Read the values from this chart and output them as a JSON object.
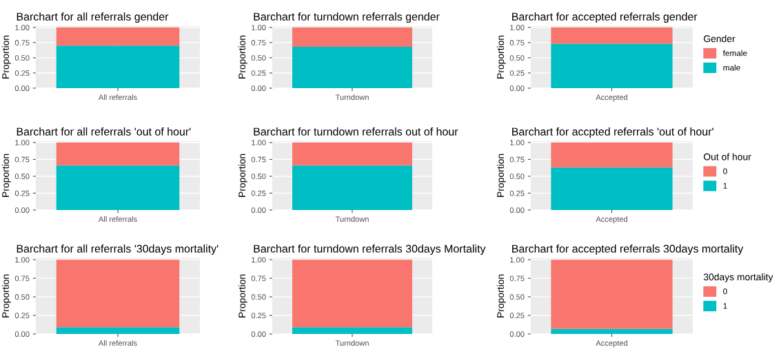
{
  "chart_data": [
    {
      "type": "bar",
      "stacked": true,
      "title": "Barchart for all referrals gender",
      "ylabel": "Proportion",
      "categories": [
        "All referrals"
      ],
      "ylim": [
        0,
        1.02
      ],
      "yticks": [
        {
          "value": 0,
          "label": "0.00"
        },
        {
          "value": 0.25,
          "label": "0.25"
        },
        {
          "value": 0.5,
          "label": "0.50"
        },
        {
          "value": 0.75,
          "label": "0.75"
        },
        {
          "value": 1,
          "label": "1.00"
        }
      ],
      "grid": true,
      "series": [
        {
          "color": "#00bfc4",
          "values": [
            0.7
          ]
        },
        {
          "color": "#f8766d",
          "values": [
            0.3
          ]
        }
      ]
    },
    {
      "type": "bar",
      "stacked": true,
      "title": "Barchart for turndown referrals gender",
      "ylabel": "Proportion",
      "categories": [
        "Turndown"
      ],
      "ylim": [
        0,
        1.02
      ],
      "yticks": [
        {
          "value": 0,
          "label": "0.00"
        },
        {
          "value": 0.25,
          "label": "0.25"
        },
        {
          "value": 0.5,
          "label": "0.50"
        },
        {
          "value": 0.75,
          "label": "0.75"
        },
        {
          "value": 1,
          "label": "1.00"
        }
      ],
      "grid": true,
      "series": [
        {
          "color": "#00bfc4",
          "values": [
            0.68
          ]
        },
        {
          "color": "#f8766d",
          "values": [
            0.32
          ]
        }
      ]
    },
    {
      "type": "bar",
      "stacked": true,
      "title": "Barchart for accepted referrals gender",
      "ylabel": "Proportion",
      "categories": [
        "Accepted"
      ],
      "ylim": [
        0,
        1.02
      ],
      "yticks": [
        {
          "value": 0,
          "label": "0.00"
        },
        {
          "value": 0.25,
          "label": "0.25"
        },
        {
          "value": 0.5,
          "label": "0.50"
        },
        {
          "value": 0.75,
          "label": "0.75"
        },
        {
          "value": 1,
          "label": "1.00"
        }
      ],
      "grid": true,
      "legend": "right",
      "legend_title": "Gender",
      "series": [
        {
          "name": "male",
          "color": "#00bfc4",
          "values": [
            0.73
          ]
        },
        {
          "name": "female",
          "color": "#f8766d",
          "values": [
            0.27
          ]
        }
      ]
    },
    {
      "type": "bar",
      "stacked": true,
      "title": "Barchart for all referrals 'out of hour'",
      "ylabel": "Proportion",
      "categories": [
        "All referrals"
      ],
      "ylim": [
        0,
        1.02
      ],
      "yticks": [
        {
          "value": 0,
          "label": "0.00"
        },
        {
          "value": 0.25,
          "label": "0.25"
        },
        {
          "value": 0.5,
          "label": "0.50"
        },
        {
          "value": 0.75,
          "label": "0.75"
        },
        {
          "value": 1,
          "label": "1.00"
        }
      ],
      "grid": true,
      "series": [
        {
          "color": "#00bfc4",
          "values": [
            0.66
          ]
        },
        {
          "color": "#f8766d",
          "values": [
            0.34
          ]
        }
      ]
    },
    {
      "type": "bar",
      "stacked": true,
      "title": "Barchart for turndown referrals out of hour",
      "ylabel": "Proportion",
      "categories": [
        "Turndown"
      ],
      "ylim": [
        0,
        1.02
      ],
      "yticks": [
        {
          "value": 0,
          "label": "0.00"
        },
        {
          "value": 0.25,
          "label": "0.25"
        },
        {
          "value": 0.5,
          "label": "0.50"
        },
        {
          "value": 0.75,
          "label": "0.75"
        },
        {
          "value": 1,
          "label": "1.00"
        }
      ],
      "grid": true,
      "series": [
        {
          "color": "#00bfc4",
          "values": [
            0.66
          ]
        },
        {
          "color": "#f8766d",
          "values": [
            0.34
          ]
        }
      ]
    },
    {
      "type": "bar",
      "stacked": true,
      "title": "Barchart for accpted referrals 'out of hour'",
      "ylabel": "Proportion",
      "categories": [
        "Accepted"
      ],
      "ylim": [
        0,
        1.02
      ],
      "yticks": [
        {
          "value": 0,
          "label": "0.00"
        },
        {
          "value": 0.25,
          "label": "0.25"
        },
        {
          "value": 0.5,
          "label": "0.50"
        },
        {
          "value": 0.75,
          "label": "0.75"
        },
        {
          "value": 1,
          "label": "1.00"
        }
      ],
      "grid": true,
      "legend": "right",
      "legend_title": "Out of hour",
      "series": [
        {
          "name": "1",
          "color": "#00bfc4",
          "values": [
            0.63
          ]
        },
        {
          "name": "0",
          "color": "#f8766d",
          "values": [
            0.37
          ]
        }
      ]
    },
    {
      "type": "bar",
      "stacked": true,
      "title": "Barchart for all referrals '30days mortality'",
      "ylabel": "Proportion",
      "categories": [
        "All referrals"
      ],
      "ylim": [
        0,
        1.02
      ],
      "yticks": [
        {
          "value": 0,
          "label": "0.00"
        },
        {
          "value": 0.25,
          "label": "0.25"
        },
        {
          "value": 0.5,
          "label": "0.50"
        },
        {
          "value": 0.75,
          "label": "0.75"
        },
        {
          "value": 1,
          "label": "1.00"
        }
      ],
      "grid": true,
      "series": [
        {
          "color": "#00bfc4",
          "values": [
            0.09
          ]
        },
        {
          "color": "#f8766d",
          "values": [
            0.91
          ]
        }
      ]
    },
    {
      "type": "bar",
      "stacked": true,
      "title": "Barchart for turndown referrals 30days Mortality",
      "ylabel": "Proportion",
      "categories": [
        "Turndown"
      ],
      "ylim": [
        0,
        1.02
      ],
      "yticks": [
        {
          "value": 0,
          "label": "0.00"
        },
        {
          "value": 0.25,
          "label": "0.25"
        },
        {
          "value": 0.5,
          "label": "0.50"
        },
        {
          "value": 0.75,
          "label": "0.75"
        },
        {
          "value": 1,
          "label": "1.00"
        }
      ],
      "grid": true,
      "series": [
        {
          "color": "#00bfc4",
          "values": [
            0.09
          ]
        },
        {
          "color": "#f8766d",
          "values": [
            0.91
          ]
        }
      ]
    },
    {
      "type": "bar",
      "stacked": true,
      "title": "Barchart for accepted referrals 30days mortality",
      "ylabel": "Proportion",
      "categories": [
        "Accepted"
      ],
      "ylim": [
        0,
        1.02
      ],
      "yticks": [
        {
          "value": 0,
          "label": "0.00"
        },
        {
          "value": 0.25,
          "label": "0.25"
        },
        {
          "value": 0.5,
          "label": "0.50"
        },
        {
          "value": 0.75,
          "label": "0.75"
        },
        {
          "value": 1,
          "label": "1.00"
        }
      ],
      "grid": true,
      "legend": "right",
      "legend_title": "30days mortality",
      "series": [
        {
          "name": "1",
          "color": "#00bfc4",
          "values": [
            0.07
          ]
        },
        {
          "name": "0",
          "color": "#f8766d",
          "values": [
            0.93
          ]
        }
      ]
    }
  ]
}
